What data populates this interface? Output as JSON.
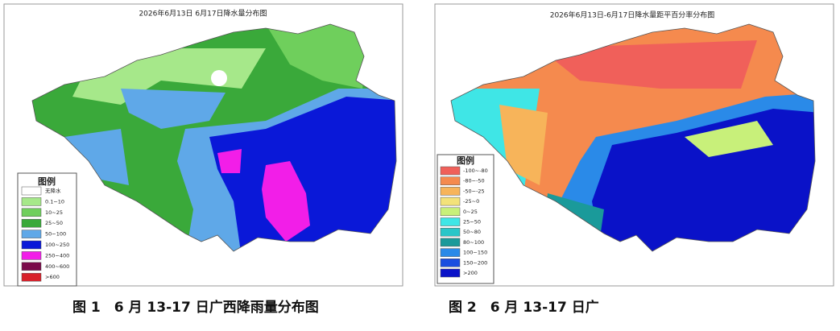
{
  "maps": [
    {
      "title": "2026年6月13日 6月17日降水量分布图",
      "legend": {
        "title": "图例",
        "items": [
          {
            "label": "无降水",
            "color": "#ffffff"
          },
          {
            "label": "0.1~10",
            "color": "#a6e88a"
          },
          {
            "label": "10~25",
            "color": "#6fcf5c"
          },
          {
            "label": "25~50",
            "color": "#3aa93a"
          },
          {
            "label": "50~100",
            "color": "#5fa8e8"
          },
          {
            "label": "100~250",
            "color": "#0a18d8"
          },
          {
            "label": "250~400",
            "color": "#f21ee8"
          },
          {
            "label": "400~600",
            "color": "#7a0a4a"
          },
          {
            "label": ">600",
            "color": "#d8202a"
          }
        ]
      },
      "caption": "图 1　6 月 13-17 日广西降雨量分布图"
    },
    {
      "title": "2026年6月13日-6月17日降水量距平百分率分布图",
      "legend": {
        "title": "图例",
        "items": [
          {
            "label": "-100~-80",
            "color": "#f0605a"
          },
          {
            "label": "-80~-50",
            "color": "#f58a4e"
          },
          {
            "label": "-50~-25",
            "color": "#f7b45a"
          },
          {
            "label": "-25~0",
            "color": "#f3e27a"
          },
          {
            "label": "0~25",
            "color": "#c8f07a"
          },
          {
            "label": "25~50",
            "color": "#3fe6e6"
          },
          {
            "label": "50~80",
            "color": "#2ac6c8"
          },
          {
            "label": "80~100",
            "color": "#1a9a9a"
          },
          {
            "label": "100~150",
            "color": "#2a8ae8"
          },
          {
            "label": "150~200",
            "color": "#1a4ee0"
          },
          {
            "label": ">200",
            "color": "#0a12c8"
          }
        ]
      },
      "caption": "图 2　6 月 13-17 日广"
    }
  ]
}
